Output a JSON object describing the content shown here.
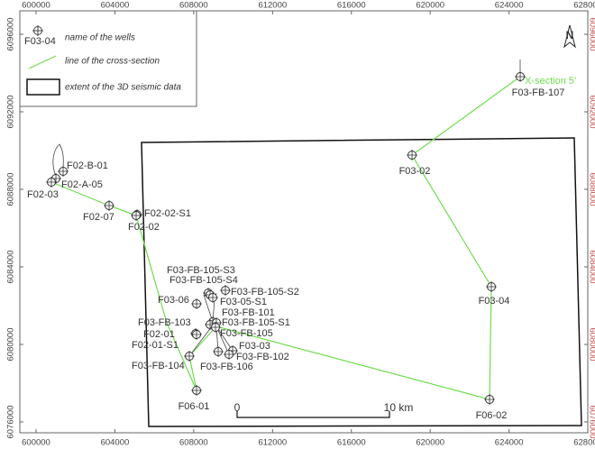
{
  "legend": {
    "well_sample": "F03-04",
    "wells": "name of the wells",
    "cross_section": "line of the cross-section",
    "seismic": "extent of the 3D seismic data"
  },
  "axes": {
    "xticks": [
      600000,
      604000,
      608000,
      612000,
      616000,
      620000,
      624000,
      628000
    ],
    "yticks": [
      6096000,
      6092000,
      6088000,
      6084000,
      6080000,
      6076000
    ]
  },
  "north": "N",
  "scale_bar": {
    "start": "0",
    "end": "10 km"
  },
  "cross_section_label": "X-section 5'",
  "wells": [
    {
      "name": "F03-FB-107",
      "x": 624568,
      "y": 6093814
    },
    {
      "name": "F03-02",
      "x": 619078,
      "y": 6089768
    },
    {
      "name": "F03-04",
      "x": 623104,
      "y": 6082977
    },
    {
      "name": "F06-02",
      "x": 623012,
      "y": 6077163
    },
    {
      "name": "F06-01",
      "x": 608144,
      "y": 6077629
    },
    {
      "name": "F02-B-01",
      "x": 601373,
      "y": 6088930
    },
    {
      "name": "F02-A-05",
      "x": 601007,
      "y": 6088558
    },
    {
      "name": "F02-03",
      "x": 600778,
      "y": 6088372
    },
    {
      "name": "F02-07",
      "x": 603706,
      "y": 6087163
    },
    {
      "name": "F02-02-S1",
      "x": 605124,
      "y": 6086698
    },
    {
      "name": "F02-02",
      "x": 605078,
      "y": 6086651
    },
    {
      "name": "F03-FB-105-S3",
      "x": 608738,
      "y": 6082652
    },
    {
      "name": "F03-FB-105-S4",
      "x": 608830,
      "y": 6082559
    },
    {
      "name": "F03-FB-105-S2",
      "x": 609608,
      "y": 6082791
    },
    {
      "name": "F03-05-S1",
      "x": 608967,
      "y": 6082419
    },
    {
      "name": "F03-06",
      "x": 608144,
      "y": 6082094
    },
    {
      "name": "F03-FB-101",
      "x": 608967,
      "y": 6081163
    },
    {
      "name": "F03-FB-103",
      "x": 608830,
      "y": 6081024
    },
    {
      "name": "F03-FB-105-S1",
      "x": 609150,
      "y": 6081117
    },
    {
      "name": "F03-FB-105",
      "x": 609104,
      "y": 6080884
    },
    {
      "name": "F02-01",
      "x": 608098,
      "y": 6080558
    },
    {
      "name": "F02-01-S1",
      "x": 608144,
      "y": 6080512
    },
    {
      "name": "F03-03",
      "x": 609974,
      "y": 6079675
    },
    {
      "name": "F03-FB-102",
      "x": 609791,
      "y": 6079489
    },
    {
      "name": "F03-FB-104",
      "x": 607778,
      "y": 6079396
    },
    {
      "name": "F03-FB-106",
      "x": 609242,
      "y": 6079628
    }
  ]
}
